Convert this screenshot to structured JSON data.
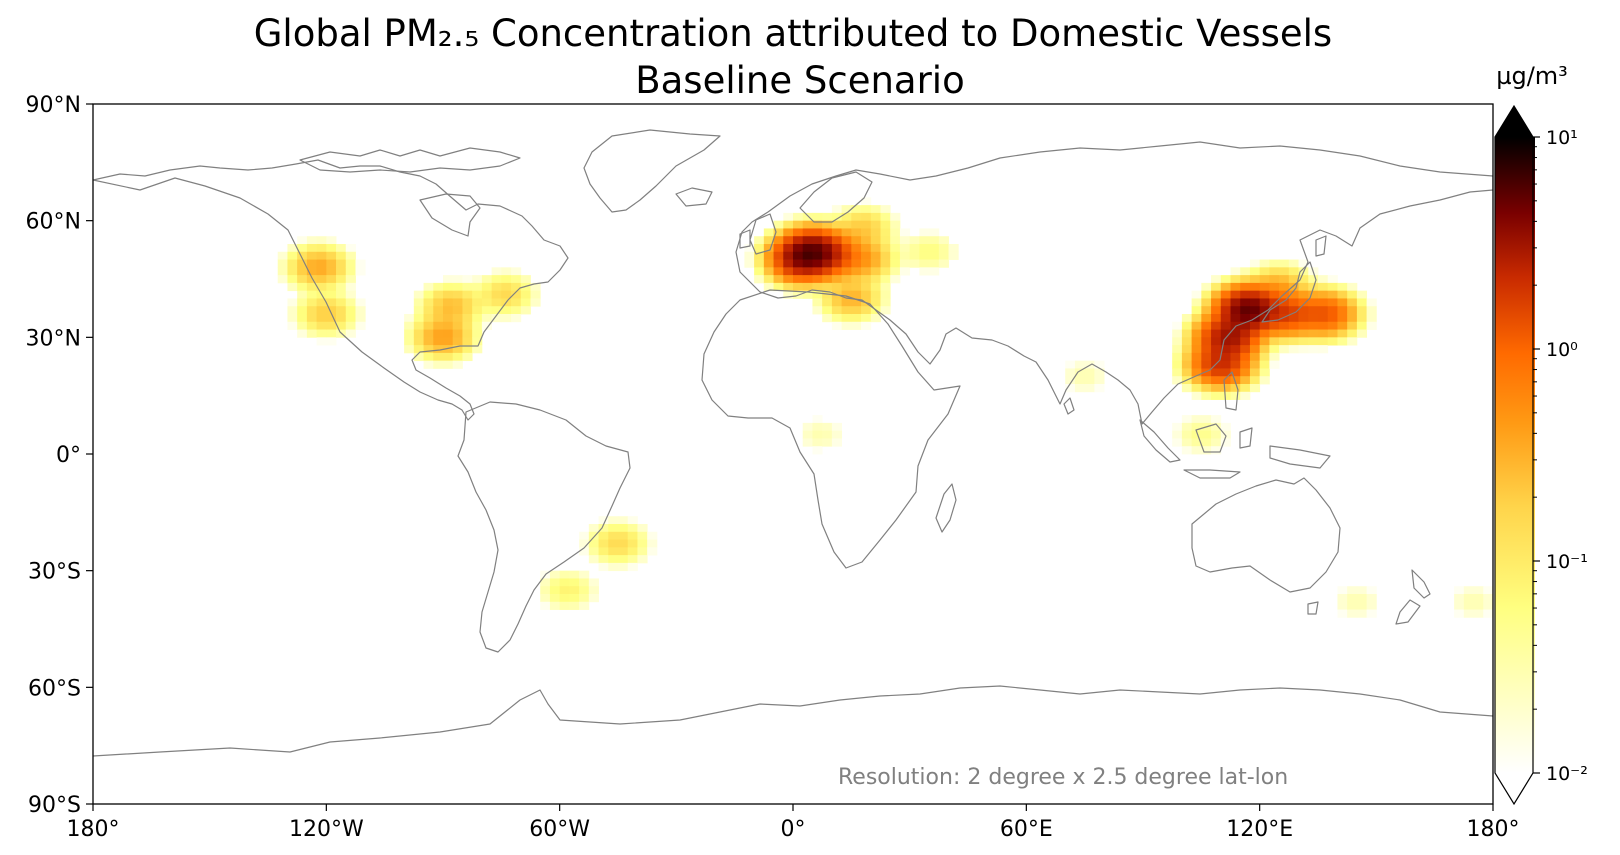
{
  "title_line1": "Global PM₂.₅ Concentration attributed to Domestic Vessels",
  "title_line2": "Baseline Scenario",
  "annotation": "Resolution: 2 degree x 2.5 degree lat-lon",
  "colorbar": {
    "unit_label": "µg/m³",
    "scale": "log",
    "range": [
      0.01,
      10
    ],
    "extend": "max",
    "colormap": "afmhot_r",
    "ticks": [
      {
        "value": 10,
        "label": "10¹"
      },
      {
        "value": 1,
        "label": "10⁰"
      },
      {
        "value": 0.1,
        "label": "10⁻¹"
      },
      {
        "value": 0.01,
        "label": "10⁻²"
      }
    ]
  },
  "map": {
    "projection": "PlateCarree",
    "lon_range": [
      -180,
      180
    ],
    "lat_range": [
      -90,
      90
    ],
    "x_ticks": [
      {
        "value": -180,
        "label": "180°"
      },
      {
        "value": -120,
        "label": "120°W"
      },
      {
        "value": -60,
        "label": "60°W"
      },
      {
        "value": 0,
        "label": "0°"
      },
      {
        "value": 60,
        "label": "60°E"
      },
      {
        "value": 120,
        "label": "120°E"
      },
      {
        "value": 180,
        "label": "180°"
      }
    ],
    "y_ticks": [
      {
        "value": 90,
        "label": "90°N"
      },
      {
        "value": 60,
        "label": "60°N"
      },
      {
        "value": 30,
        "label": "30°N"
      },
      {
        "value": 0,
        "label": "0°"
      },
      {
        "value": -30,
        "label": "30°S"
      },
      {
        "value": -60,
        "label": "60°S"
      },
      {
        "value": -90,
        "label": "90°S"
      }
    ],
    "coastline_color": "#808080",
    "hotspots": [
      {
        "region": "Western Europe",
        "lon": 5,
        "lat": 52,
        "value": 4.0
      },
      {
        "region": "North Sea / Benelux",
        "lon": 2,
        "lat": 50,
        "value": 2.5
      },
      {
        "region": "Germany",
        "lon": 10,
        "lat": 51,
        "value": 1.0
      },
      {
        "region": "Central Europe",
        "lon": 18,
        "lat": 50,
        "value": 0.4
      },
      {
        "region": "Mediterranean",
        "lon": 15,
        "lat": 40,
        "value": 0.3
      },
      {
        "region": "Baltic / Scandinavia",
        "lon": 18,
        "lat": 58,
        "value": 0.2
      },
      {
        "region": "Eastern Europe",
        "lon": 35,
        "lat": 52,
        "value": 0.06
      },
      {
        "region": "North China",
        "lon": 117,
        "lat": 37,
        "value": 5.0
      },
      {
        "region": "East China",
        "lon": 112,
        "lat": 30,
        "value": 3.0
      },
      {
        "region": "South China",
        "lon": 110,
        "lat": 23,
        "value": 2.0
      },
      {
        "region": "Korea",
        "lon": 127,
        "lat": 36,
        "value": 1.5
      },
      {
        "region": "Japan",
        "lon": 137,
        "lat": 36,
        "value": 1.2
      },
      {
        "region": "Northeast China",
        "lon": 125,
        "lat": 43,
        "value": 0.3
      },
      {
        "region": "Southeast Asia",
        "lon": 105,
        "lat": 5,
        "value": 0.05
      },
      {
        "region": "India",
        "lon": 75,
        "lat": 20,
        "value": 0.03
      },
      {
        "region": "US Gulf Coast",
        "lon": -90,
        "lat": 30,
        "value": 0.4
      },
      {
        "region": "US Midwest",
        "lon": -88,
        "lat": 38,
        "value": 0.25
      },
      {
        "region": "US Northeast",
        "lon": -74,
        "lat": 41,
        "value": 0.15
      },
      {
        "region": "US Pacific Northwest",
        "lon": -122,
        "lat": 48,
        "value": 0.35
      },
      {
        "region": "US California",
        "lon": -120,
        "lat": 36,
        "value": 0.2
      },
      {
        "region": "Brazil Southeast",
        "lon": -45,
        "lat": -23,
        "value": 0.15
      },
      {
        "region": "Argentina Buenos Aires",
        "lon": -58,
        "lat": -35,
        "value": 0.08
      },
      {
        "region": "West Africa",
        "lon": 7,
        "lat": 5,
        "value": 0.03
      },
      {
        "region": "Australia Southeast",
        "lon": 145,
        "lat": -38,
        "value": 0.03
      },
      {
        "region": "New Zealand",
        "lon": 175,
        "lat": -38,
        "value": 0.03
      }
    ]
  }
}
